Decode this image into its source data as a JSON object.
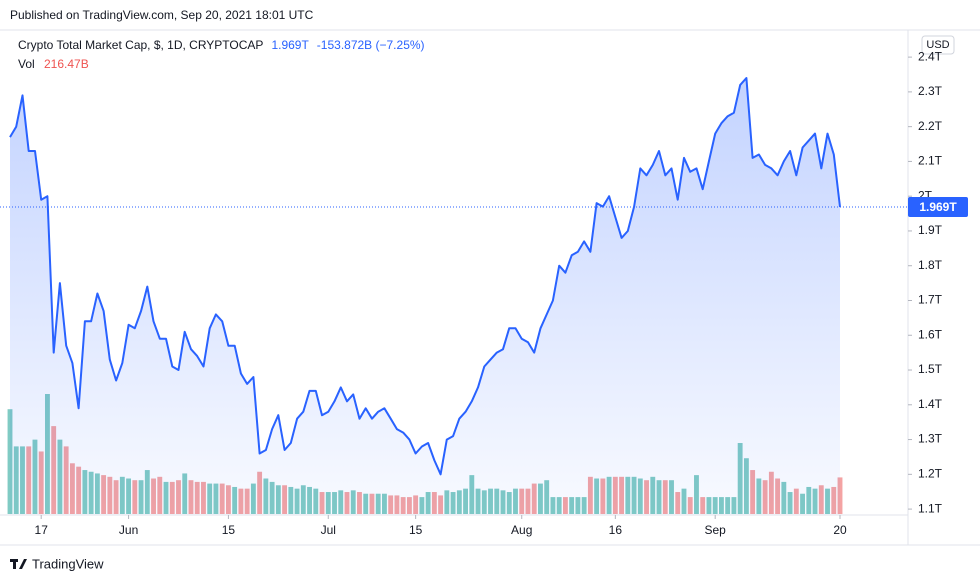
{
  "published": "Published on TradingView.com, Sep 20, 2021 18:01 UTC",
  "brand": "TradingView",
  "chart_data": {
    "type": "line",
    "title": "Crypto Total Market Cap, $, 1D, CRYPTOCAP",
    "close_label": "1.969T",
    "change_label": "-153.872B (−7.25%)",
    "currency": "USD",
    "volume_title": "Vol",
    "volume_label": "216.47B",
    "line_color": "#2962ff",
    "up_color": "#80cbc4",
    "down_color": "#f4a3a3",
    "categories": [
      null,
      null,
      null,
      null,
      null,
      "17",
      null,
      null,
      null,
      null,
      null,
      null,
      null,
      null,
      null,
      null,
      null,
      null,
      null,
      "Jun",
      null,
      null,
      null,
      null,
      null,
      null,
      null,
      null,
      null,
      null,
      null,
      null,
      null,
      null,
      null,
      "15",
      null,
      null,
      null,
      null,
      null,
      null,
      null,
      null,
      null,
      null,
      null,
      null,
      null,
      null,
      null,
      "Jul",
      null,
      null,
      null,
      null,
      null,
      null,
      null,
      null,
      null,
      null,
      null,
      null,
      null,
      "15",
      null,
      null,
      null,
      null,
      null,
      null,
      null,
      null,
      null,
      null,
      null,
      null,
      null,
      null,
      null,
      null,
      "Aug",
      null,
      null,
      null,
      null,
      null,
      null,
      null,
      null,
      null,
      null,
      null,
      null,
      null,
      null,
      "16",
      null,
      null,
      null,
      null,
      null,
      null,
      null,
      null,
      null,
      null,
      null,
      null,
      null,
      null,
      null,
      "Sep",
      null,
      null,
      null,
      null,
      null,
      null,
      null,
      null,
      null,
      null,
      null,
      null,
      null,
      null,
      null,
      null,
      null,
      null,
      null,
      "20"
    ],
    "series": [
      {
        "name": "Crypto Total Market Cap",
        "color": "#2962ff",
        "values": [
          2.17,
          2.2,
          2.29,
          2.13,
          2.13,
          1.99,
          2.0,
          1.55,
          1.75,
          1.57,
          1.52,
          1.39,
          1.64,
          1.64,
          1.72,
          1.67,
          1.53,
          1.47,
          1.52,
          1.63,
          1.62,
          1.67,
          1.74,
          1.64,
          1.59,
          1.59,
          1.51,
          1.5,
          1.61,
          1.56,
          1.54,
          1.51,
          1.62,
          1.66,
          1.64,
          1.57,
          1.57,
          1.49,
          1.46,
          1.48,
          1.26,
          1.27,
          1.33,
          1.37,
          1.27,
          1.29,
          1.36,
          1.38,
          1.44,
          1.44,
          1.37,
          1.38,
          1.41,
          1.45,
          1.41,
          1.43,
          1.36,
          1.39,
          1.36,
          1.38,
          1.39,
          1.36,
          1.33,
          1.32,
          1.3,
          1.26,
          1.28,
          1.29,
          1.24,
          1.2,
          1.3,
          1.31,
          1.36,
          1.38,
          1.41,
          1.45,
          1.51,
          1.53,
          1.55,
          1.56,
          1.62,
          1.62,
          1.59,
          1.58,
          1.55,
          1.62,
          1.66,
          1.7,
          1.8,
          1.78,
          1.83,
          1.84,
          1.87,
          1.84,
          1.98,
          1.97,
          2.0,
          1.94,
          1.88,
          1.9,
          1.97,
          2.08,
          2.06,
          2.09,
          2.13,
          2.06,
          2.08,
          1.99,
          2.11,
          2.07,
          2.08,
          2.02,
          2.1,
          2.18,
          2.21,
          2.23,
          2.24,
          2.32,
          2.34,
          2.11,
          2.12,
          2.09,
          2.08,
          2.06,
          2.1,
          2.13,
          2.06,
          2.14,
          2.16,
          2.18,
          2.08,
          2.18,
          2.12,
          1.969
        ]
      },
      {
        "name": "Vol",
        "values": [
          620,
          400,
          400,
          400,
          440,
          370,
          710,
          520,
          440,
          400,
          300,
          280,
          260,
          250,
          240,
          230,
          220,
          200,
          220,
          210,
          200,
          200,
          260,
          210,
          220,
          190,
          190,
          200,
          240,
          200,
          190,
          190,
          180,
          180,
          180,
          170,
          160,
          150,
          150,
          180,
          250,
          210,
          190,
          170,
          170,
          160,
          150,
          170,
          160,
          150,
          130,
          130,
          130,
          140,
          130,
          140,
          130,
          120,
          120,
          120,
          120,
          110,
          110,
          100,
          100,
          110,
          100,
          130,
          130,
          110,
          140,
          130,
          140,
          150,
          230,
          150,
          140,
          150,
          150,
          140,
          130,
          150,
          150,
          150,
          180,
          180,
          200,
          100,
          100,
          100,
          100,
          100,
          100,
          220,
          210,
          210,
          220,
          220,
          220,
          220,
          220,
          210,
          200,
          220,
          200,
          200,
          200,
          130,
          150,
          100,
          230,
          100,
          100,
          100,
          100,
          100,
          100,
          420,
          330,
          260,
          210,
          200,
          250,
          210,
          190,
          130,
          150,
          120,
          160,
          150,
          170,
          150,
          160,
          216.47
        ]
      }
    ],
    "ylim": [
      1.083,
      2.478
    ],
    "yticks": [
      {
        "value": 1.1,
        "label": "1.1T"
      },
      {
        "value": 1.2,
        "label": "1.2T"
      },
      {
        "value": 1.3,
        "label": "1.3T"
      },
      {
        "value": 1.4,
        "label": "1.4T"
      },
      {
        "value": 1.5,
        "label": "1.5T"
      },
      {
        "value": 1.6,
        "label": "1.6T"
      },
      {
        "value": 1.7,
        "label": "1.7T"
      },
      {
        "value": 1.8,
        "label": "1.8T"
      },
      {
        "value": 1.9,
        "label": "1.9T"
      },
      {
        "value": 2,
        "label": "2T"
      },
      {
        "value": 2.1,
        "label": "2.1T"
      },
      {
        "value": 2.2,
        "label": "2.2T"
      },
      {
        "value": 2.3,
        "label": "2.3T"
      },
      {
        "value": 2.4,
        "label": "2.4T"
      }
    ],
    "grid": false
  }
}
